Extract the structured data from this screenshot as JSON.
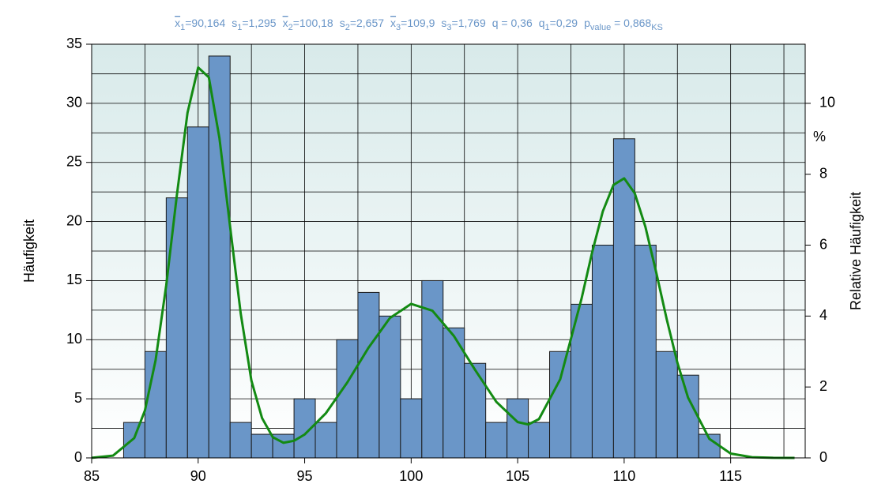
{
  "chart_data": {
    "type": "histogram",
    "stats": [
      {
        "symbol": "x",
        "bar": true,
        "sub": "1",
        "text": "=90,164"
      },
      {
        "symbol": "s",
        "sub": "1",
        "text": "=1,295"
      },
      {
        "symbol": "x",
        "bar": true,
        "sub": "2",
        "text": "=100,18"
      },
      {
        "symbol": "s",
        "sub": "2",
        "text": "=2,657"
      },
      {
        "symbol": "x",
        "bar": true,
        "sub": "3",
        "text": "=109,9"
      },
      {
        "symbol": "s",
        "sub": "3",
        "text": "=1,769"
      },
      {
        "symbol": "q = 0,36"
      },
      {
        "symbol": "q",
        "sub": "1",
        "text": "=0,29"
      },
      {
        "symbol": "p",
        "sub": "value",
        "text": " = 0,868",
        "sub2": "KS"
      }
    ],
    "ylabel": "Häufigkeit",
    "y2label": "Relative Häufigkeit",
    "y2unit": "%",
    "bins": [
      86.5,
      87.5,
      88.5,
      89.5,
      90.5,
      91.5,
      92.5,
      93.5,
      94.5,
      95.5,
      96.5,
      97.5,
      98.5,
      99.5,
      100.5,
      101.5,
      102.5,
      103.5,
      104.5,
      105.5,
      106.5,
      107.5,
      108.5,
      109.5,
      110.5,
      111.5,
      112.5,
      113.5,
      114.5
    ],
    "counts": [
      3,
      9,
      22,
      28,
      34,
      3,
      2,
      2,
      5,
      3,
      10,
      14,
      12,
      5,
      15,
      11,
      8,
      3,
      5,
      3,
      9,
      13,
      18,
      27,
      18,
      9,
      7,
      2
    ],
    "color": "#6a96c8",
    "edgecolor": "#1a1a1a",
    "curve": {
      "color": "#138a13",
      "x": [
        85,
        86,
        87,
        87.5,
        88,
        88.5,
        89,
        89.5,
        90,
        90.5,
        91,
        91.5,
        92,
        92.5,
        93,
        93.5,
        94,
        94.5,
        95,
        96,
        97,
        98,
        99,
        100,
        101,
        102,
        103,
        104,
        105,
        105.5,
        106,
        107,
        108,
        108.5,
        109,
        109.5,
        110,
        110.5,
        111,
        111.5,
        112,
        112.5,
        113,
        114,
        115,
        116,
        117,
        118
      ],
      "values": [
        0.01,
        0.19,
        1.68,
        4.01,
        8.25,
        14.59,
        22.23,
        29.2,
        33.03,
        32.2,
        27.04,
        19.56,
        12.19,
        6.54,
        3.37,
        1.76,
        1.28,
        1.45,
        1.98,
        3.79,
        6.38,
        9.33,
        11.83,
        13.03,
        12.45,
        10.33,
        7.45,
        4.74,
        3.03,
        2.83,
        3.28,
        6.66,
        13.48,
        17.42,
        20.87,
        23.1,
        23.65,
        22.38,
        19.53,
        15.74,
        11.72,
        8.05,
        5.1,
        1.61,
        0.37,
        0.06,
        0.01,
        0
      ]
    },
    "xlim": [
      85,
      118.5
    ],
    "xticks": [
      85,
      90,
      95,
      100,
      105,
      110,
      115
    ],
    "ylim": [
      0,
      35
    ],
    "yticks": [
      0,
      5,
      10,
      15,
      20,
      25,
      30,
      35
    ],
    "y2lim": [
      0,
      11.6667
    ],
    "y2ticks": [
      0,
      2,
      4,
      6,
      8,
      10
    ],
    "grid": true,
    "xgrid": [
      85,
      87.5,
      90,
      92.5,
      95,
      97.5,
      100,
      102.5,
      105,
      107.5,
      110,
      112.5,
      115,
      117.5
    ],
    "ygrid": [
      2.5,
      5,
      7.5,
      10,
      12.5,
      15,
      17.5,
      20,
      22.5,
      25,
      27.5,
      30,
      32.5
    ]
  }
}
